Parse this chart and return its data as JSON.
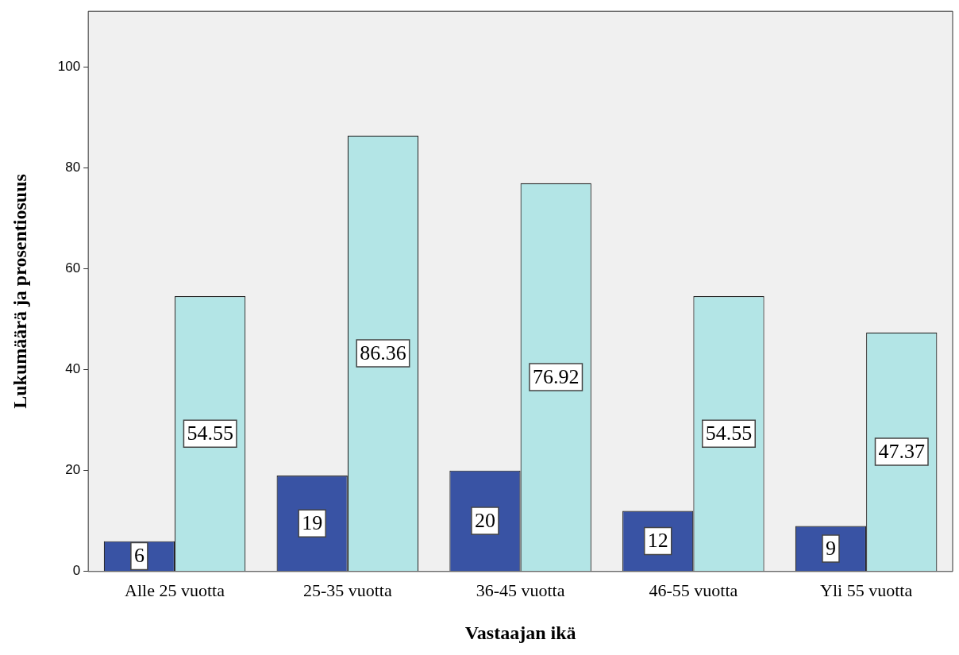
{
  "chart_data": {
    "type": "bar",
    "xlabel": "Vastaajan ikä",
    "ylabel": "Lukumäärä ja prosentiosuus",
    "categories": [
      "Alle 25 vuotta",
      "25-35 vuotta",
      "36-45 vuotta",
      "46-55 vuotta",
      "Yli 55 vuotta"
    ],
    "series": [
      {
        "color": "#3953a4",
        "values": [
          6,
          19,
          20,
          12,
          9
        ]
      },
      {
        "color": "#b3e5e6",
        "values": [
          54.55,
          86.36,
          76.92,
          54.55,
          47.37
        ]
      }
    ],
    "ylim": [
      0,
      111
    ],
    "yticks": [
      0,
      20,
      40,
      60,
      80,
      100
    ],
    "grid": false,
    "legend": false,
    "data_labels": true
  }
}
